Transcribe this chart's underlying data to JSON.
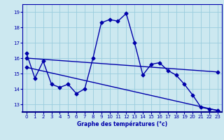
{
  "xlabel": "Graphe des températures (°c)",
  "bg_color": "#cce8f0",
  "plot_bg_color": "#cce8f0",
  "grid_color": "#99ccdd",
  "line_color": "#0000aa",
  "ylim": [
    12.5,
    19.5
  ],
  "xlim": [
    -0.5,
    23.5
  ],
  "yticks": [
    13,
    14,
    15,
    16,
    17,
    18,
    19
  ],
  "xticks": [
    0,
    1,
    2,
    3,
    4,
    5,
    6,
    7,
    8,
    9,
    10,
    11,
    12,
    13,
    14,
    15,
    16,
    17,
    18,
    19,
    20,
    21,
    22,
    23
  ],
  "series1_x": [
    0,
    1,
    2,
    3,
    4,
    5,
    6,
    7,
    8,
    9,
    10,
    11,
    12,
    13,
    14,
    15,
    16,
    17,
    18,
    19,
    20,
    21,
    22,
    23
  ],
  "series1_y": [
    16.3,
    14.7,
    15.8,
    14.3,
    14.1,
    14.3,
    13.7,
    14.0,
    16.0,
    18.3,
    18.5,
    18.4,
    18.9,
    17.0,
    14.9,
    15.6,
    15.7,
    15.2,
    14.9,
    14.3,
    13.6,
    12.8,
    12.7,
    12.6
  ],
  "series2_x": [
    0,
    23
  ],
  "series2_y": [
    16.0,
    15.1
  ],
  "series3_x": [
    0,
    23
  ],
  "series3_y": [
    15.4,
    12.6
  ],
  "marker": "D",
  "markersize": 2.5,
  "linewidth": 1.0
}
